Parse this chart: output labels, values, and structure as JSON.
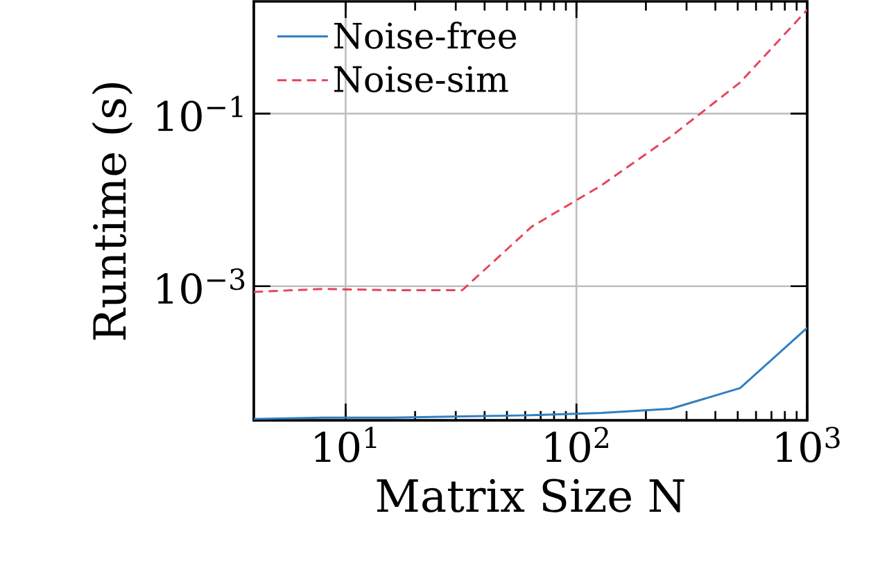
{
  "chart_data": {
    "type": "line",
    "xlabel": "Matrix Size N",
    "ylabel": "Runtime (s)",
    "log": "xy",
    "grid": true,
    "legend": "top left",
    "x": [
      4,
      8,
      16,
      32,
      64,
      128,
      256,
      512,
      1000
    ],
    "xlim": [
      4,
      1000
    ],
    "ylim": [
      2.8e-05,
      2
    ],
    "xticks": [
      {
        "value": 10,
        "label": "10$^{1}$"
      },
      {
        "value": 100,
        "label": "10$^{2}$"
      },
      {
        "value": 1000,
        "label": "10$^{3}$"
      }
    ],
    "yticks": [
      {
        "value": 0.001,
        "label": "10$^{−3}$"
      },
      {
        "value": 0.1,
        "label": "10$^{−1}$"
      }
    ],
    "series": [
      {
        "name": "Noise-free",
        "color": "#2f7fc1",
        "line_style": "solid",
        "values": [
          2.9e-05,
          3e-05,
          3e-05,
          3.1e-05,
          3.2e-05,
          3.4e-05,
          3.8e-05,
          6.6e-05,
          0.00033
        ]
      },
      {
        "name": "Noise-sim",
        "color": "#e8435a",
        "line_style": "dashed",
        "values": [
          0.00086,
          0.00093,
          0.0009,
          0.0009,
          0.0049,
          0.0147,
          0.054,
          0.23,
          1.6
        ]
      }
    ]
  }
}
